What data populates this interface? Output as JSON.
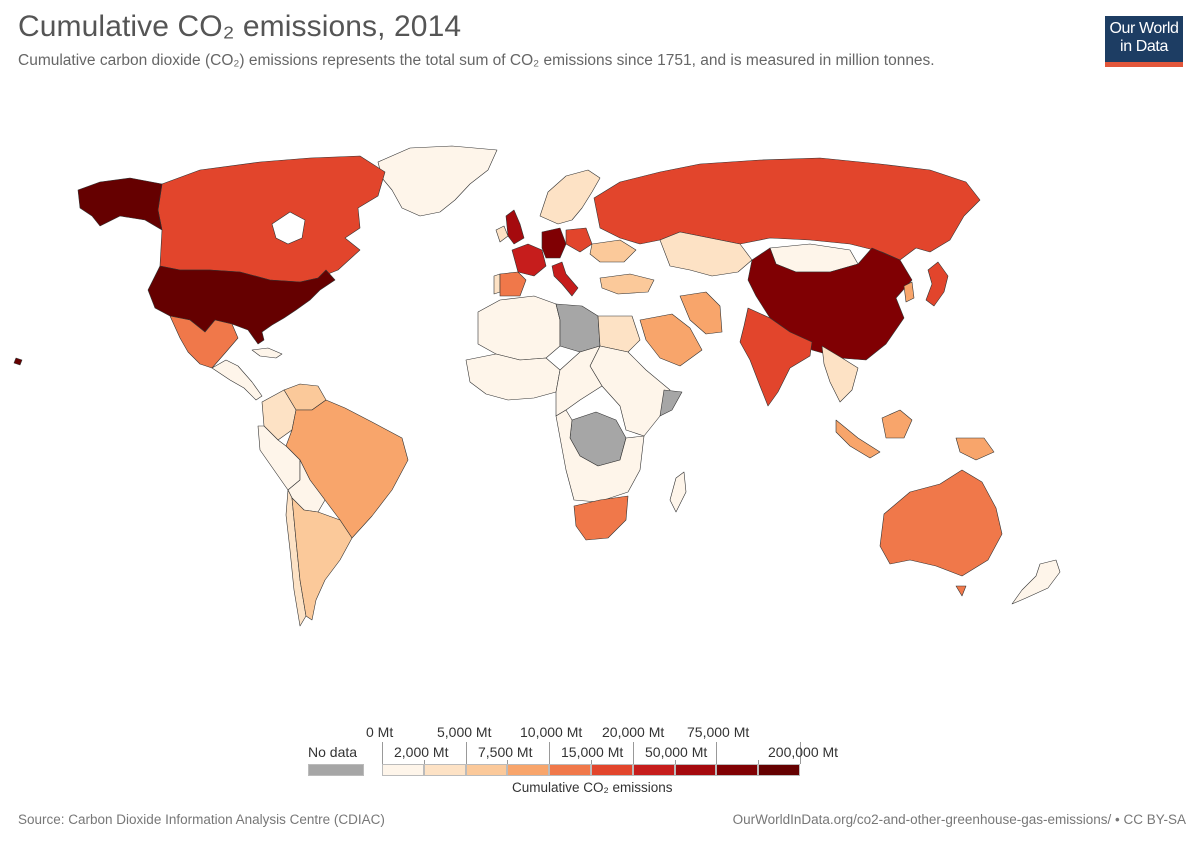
{
  "title": "Cumulative CO₂ emissions, 2014",
  "subtitle": "Cumulative carbon dioxide (CO₂) emissions represents the total sum of CO₂ emissions since 1751, and is measured in million tonnes.",
  "logo": {
    "line1": "Our World",
    "line2": "in Data",
    "bg_color": "#1d3d63",
    "accent_color": "#e2563a"
  },
  "legend": {
    "title": "Cumulative CO₂ emissions",
    "no_data_label": "No data",
    "no_data_color": "#a6a6a6",
    "top_labels": [
      "0 Mt",
      "5,000 Mt",
      "10,000 Mt",
      "20,000 Mt",
      "75,000 Mt"
    ],
    "bottom_labels": [
      "2,000 Mt",
      "7,500 Mt",
      "15,000 Mt",
      "50,000 Mt",
      "200,000 Mt"
    ],
    "bins": [
      {
        "color": "#fef5ea"
      },
      {
        "color": "#fde2c5"
      },
      {
        "color": "#fbc99a"
      },
      {
        "color": "#f8a56b"
      },
      {
        "color": "#f0784a"
      },
      {
        "color": "#e2452c"
      },
      {
        "color": "#c61d1c"
      },
      {
        "color": "#a50a0e"
      },
      {
        "color": "#800003"
      },
      {
        "color": "#650000"
      }
    ]
  },
  "map_data": {
    "countries": [
      {
        "id": "usa",
        "bin": 9
      },
      {
        "id": "alaska",
        "bin": 9
      },
      {
        "id": "hawaii",
        "bin": 9
      },
      {
        "id": "canada",
        "bin": 5
      },
      {
        "id": "greenland",
        "bin": 0
      },
      {
        "id": "mexico",
        "bin": 4
      },
      {
        "id": "central-america",
        "bin": 0
      },
      {
        "id": "cuba",
        "bin": 0
      },
      {
        "id": "venezuela",
        "bin": 2
      },
      {
        "id": "colombia",
        "bin": 1
      },
      {
        "id": "brazil",
        "bin": 3
      },
      {
        "id": "peru",
        "bin": 0
      },
      {
        "id": "bolivia",
        "bin": 0
      },
      {
        "id": "argentina",
        "bin": 2
      },
      {
        "id": "chile",
        "bin": 1
      },
      {
        "id": "uk",
        "bin": 7
      },
      {
        "id": "ireland",
        "bin": 1
      },
      {
        "id": "france",
        "bin": 6
      },
      {
        "id": "spain",
        "bin": 4
      },
      {
        "id": "portugal",
        "bin": 1
      },
      {
        "id": "germany",
        "bin": 8
      },
      {
        "id": "italy",
        "bin": 6
      },
      {
        "id": "poland",
        "bin": 5
      },
      {
        "id": "scandinavia",
        "bin": 1
      },
      {
        "id": "ukraine",
        "bin": 2
      },
      {
        "id": "russia",
        "bin": 5
      },
      {
        "id": "kazakhstan",
        "bin": 1
      },
      {
        "id": "mongolia",
        "bin": 0
      },
      {
        "id": "china",
        "bin": 8
      },
      {
        "id": "japan",
        "bin": 5
      },
      {
        "id": "korea",
        "bin": 3
      },
      {
        "id": "india",
        "bin": 5
      },
      {
        "id": "iran",
        "bin": 3
      },
      {
        "id": "saudi-arabia",
        "bin": 3
      },
      {
        "id": "turkey",
        "bin": 2
      },
      {
        "id": "se-asia",
        "bin": 1
      },
      {
        "id": "indonesia",
        "bin": 3
      },
      {
        "id": "papua",
        "bin": 3
      },
      {
        "id": "australia",
        "bin": 4
      },
      {
        "id": "new-zealand",
        "bin": 0
      },
      {
        "id": "south-africa",
        "bin": 4
      },
      {
        "id": "north-africa",
        "bin": 0
      },
      {
        "id": "egypt",
        "bin": 1
      },
      {
        "id": "west-africa",
        "bin": 0
      },
      {
        "id": "central-africa",
        "bin": 0
      },
      {
        "id": "east-africa",
        "bin": 0
      },
      {
        "id": "southern-africa",
        "bin": 0
      },
      {
        "id": "madagascar",
        "bin": 0
      },
      {
        "id": "libya",
        "nodata": true
      },
      {
        "id": "dr-congo",
        "nodata": true
      },
      {
        "id": "somalia",
        "nodata": true
      }
    ]
  },
  "footer": {
    "source": "Source: Carbon Dioxide Information Analysis Centre (CDIAC)",
    "url": "OurWorldInData.org/co2-and-other-greenhouse-gas-emissions/ • CC BY-SA"
  }
}
